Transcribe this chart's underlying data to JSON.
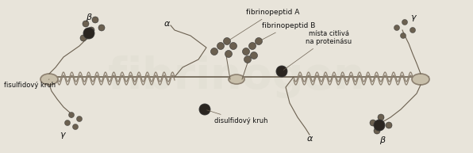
{
  "bg_color": "#e8e4da",
  "fig_color": "#ddd9cc",
  "title": "",
  "labels": {
    "beta_left": "β",
    "alpha_left": "α",
    "gamma_left": "γ",
    "fisulfidovy_kruh": "fisulfidový kruh",
    "disulfidovy_kruh": "disulfidový kruh",
    "fibrinopeptid_A": "fibrinopeptid A",
    "fibrinopeptid_B": "fibrinopeptid B",
    "mista_citliva": "místa citlivá",
    "na_proteinasu": "na proteinásu",
    "gamma_right": "γ",
    "alpha_right": "α",
    "beta_right": "β"
  },
  "coil_color": "#8c8070",
  "dark_blob_color": "#2a2520",
  "light_blob_color": "#6b6050",
  "ellipse_color": "#c8bfaa",
  "ellipse_edge": "#8c8070",
  "line_color": "#6b6050",
  "label_color": "#111111",
  "text_color_faint": "#888888"
}
